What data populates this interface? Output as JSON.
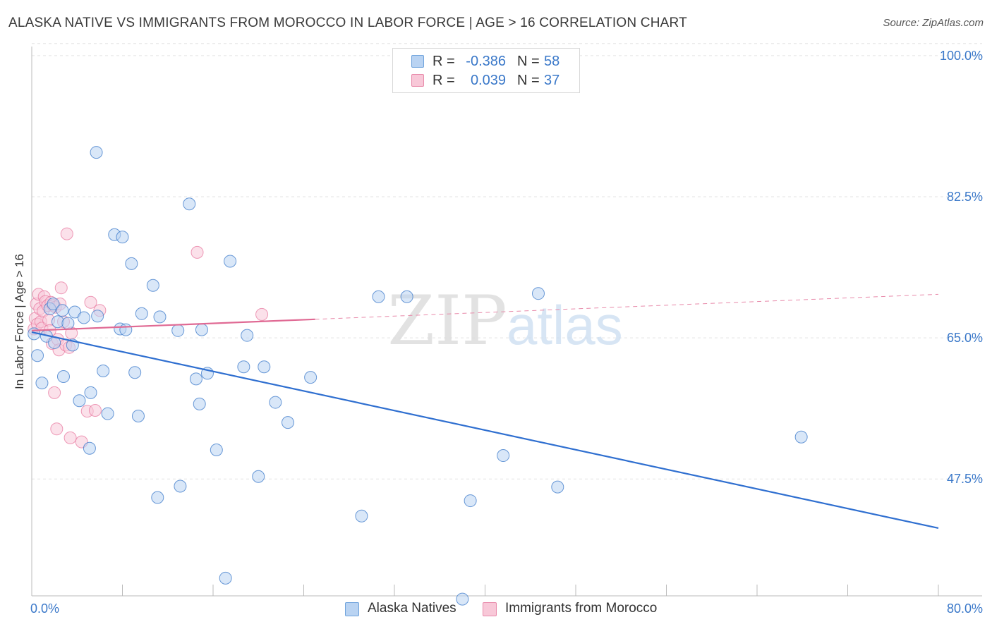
{
  "title": "ALASKA NATIVE VS IMMIGRANTS FROM MOROCCO IN LABOR FORCE | AGE > 16 CORRELATION CHART",
  "source": "Source: ZipAtlas.com",
  "watermark": {
    "zip": "ZIP",
    "atlas": "atlas"
  },
  "stats": [
    {
      "r_label": "R =",
      "r_value": "-0.386",
      "n_label": "N =",
      "n_value": "58",
      "color": "#6fa3dc",
      "fill": "#b9d3f2"
    },
    {
      "r_label": "R =",
      "r_value": "0.039",
      "n_label": "N =",
      "n_value": "37",
      "color": "#e88aaa",
      "fill": "#f8c8d8"
    }
  ],
  "legend": [
    {
      "label": "Alaska Natives",
      "color": "#6fa3dc",
      "fill": "#b9d3f2"
    },
    {
      "label": "Immigrants from Morocco",
      "color": "#e88aaa",
      "fill": "#f8c8d8"
    }
  ],
  "chart_data": {
    "type": "scatter",
    "title": "ALASKA NATIVE VS IMMIGRANTS FROM MOROCCO IN LABOR FORCE | AGE > 16 CORRELATION CHART",
    "xlabel": "",
    "ylabel": "In Labor Force | Age > 16",
    "xlim": [
      0,
      80
    ],
    "ylim": [
      33,
      102
    ],
    "x_tick_labels": [
      "0.0%",
      "80.0%"
    ],
    "y_ticks": [
      47.5,
      65.0,
      82.5,
      100.0
    ],
    "y_tick_labels": [
      "47.5%",
      "65.0%",
      "82.5%",
      "100.0%"
    ],
    "grid": true,
    "series": [
      {
        "name": "Alaska Natives",
        "color": "#3a78c9",
        "fill": "#b9d3f2",
        "points": [
          [
            0.2,
            65.5
          ],
          [
            0.5,
            62.8
          ],
          [
            0.9,
            59.4
          ],
          [
            1.3,
            65.2
          ],
          [
            1.6,
            68.6
          ],
          [
            1.9,
            69.2
          ],
          [
            2.0,
            64.4
          ],
          [
            2.3,
            67.0
          ],
          [
            2.7,
            68.4
          ],
          [
            2.8,
            60.2
          ],
          [
            3.2,
            66.8
          ],
          [
            3.6,
            64.1
          ],
          [
            3.8,
            68.2
          ],
          [
            4.2,
            57.2
          ],
          [
            4.6,
            67.5
          ],
          [
            5.1,
            51.3
          ],
          [
            5.2,
            58.2
          ],
          [
            5.7,
            88.0
          ],
          [
            5.8,
            67.7
          ],
          [
            6.3,
            60.9
          ],
          [
            6.7,
            55.6
          ],
          [
            7.3,
            77.8
          ],
          [
            7.8,
            66.1
          ],
          [
            8.0,
            77.5
          ],
          [
            8.3,
            66.0
          ],
          [
            8.8,
            74.2
          ],
          [
            9.1,
            60.7
          ],
          [
            9.4,
            55.3
          ],
          [
            9.7,
            68.0
          ],
          [
            10.7,
            71.5
          ],
          [
            11.1,
            45.2
          ],
          [
            11.3,
            67.6
          ],
          [
            12.9,
            65.9
          ],
          [
            13.1,
            46.6
          ],
          [
            13.9,
            81.6
          ],
          [
            14.5,
            59.9
          ],
          [
            14.8,
            56.8
          ],
          [
            15.0,
            66.0
          ],
          [
            15.5,
            60.6
          ],
          [
            16.3,
            51.1
          ],
          [
            17.1,
            35.2
          ],
          [
            17.5,
            74.5
          ],
          [
            18.7,
            61.4
          ],
          [
            19.0,
            65.3
          ],
          [
            20.0,
            47.8
          ],
          [
            20.5,
            61.4
          ],
          [
            21.5,
            57.0
          ],
          [
            22.6,
            54.5
          ],
          [
            24.6,
            60.1
          ],
          [
            29.1,
            42.9
          ],
          [
            30.6,
            70.1
          ],
          [
            33.1,
            70.1
          ],
          [
            38.0,
            32.6
          ],
          [
            38.7,
            44.8
          ],
          [
            41.6,
            50.4
          ],
          [
            44.7,
            70.5
          ],
          [
            46.4,
            46.5
          ],
          [
            67.9,
            52.7
          ]
        ],
        "trend": {
          "x": [
            0,
            80
          ],
          "y": [
            65.7,
            41.4
          ]
        }
      },
      {
        "name": "Immigrants from Morocco",
        "color": "#e87aa0",
        "fill": "#f8c8d8",
        "points": [
          [
            0.2,
            66.1
          ],
          [
            0.3,
            67.4
          ],
          [
            0.4,
            69.2
          ],
          [
            0.5,
            66.7
          ],
          [
            0.6,
            70.4
          ],
          [
            0.7,
            68.6
          ],
          [
            0.8,
            67.0
          ],
          [
            0.9,
            66.2
          ],
          [
            1.0,
            68.3
          ],
          [
            1.1,
            70.1
          ],
          [
            1.2,
            69.5
          ],
          [
            1.4,
            69.0
          ],
          [
            1.5,
            67.2
          ],
          [
            1.6,
            65.9
          ],
          [
            1.7,
            69.4
          ],
          [
            1.8,
            64.3
          ],
          [
            1.9,
            69.0
          ],
          [
            2.0,
            58.2
          ],
          [
            2.1,
            68.8
          ],
          [
            2.2,
            53.7
          ],
          [
            2.3,
            64.8
          ],
          [
            2.4,
            63.5
          ],
          [
            2.5,
            69.2
          ],
          [
            2.6,
            71.2
          ],
          [
            2.8,
            67.0
          ],
          [
            3.0,
            64.1
          ],
          [
            3.1,
            77.9
          ],
          [
            3.3,
            63.8
          ],
          [
            3.4,
            52.6
          ],
          [
            3.5,
            65.6
          ],
          [
            4.4,
            52.1
          ],
          [
            4.9,
            55.9
          ],
          [
            5.2,
            69.4
          ],
          [
            5.6,
            56.0
          ],
          [
            6.0,
            68.4
          ],
          [
            14.6,
            75.6
          ],
          [
            20.3,
            67.9
          ]
        ],
        "trend": {
          "x": [
            0,
            25
          ],
          "y": [
            65.9,
            67.3
          ]
        },
        "trend_extended": {
          "x": [
            25,
            80
          ],
          "y": [
            67.3,
            70.4
          ]
        }
      }
    ]
  }
}
